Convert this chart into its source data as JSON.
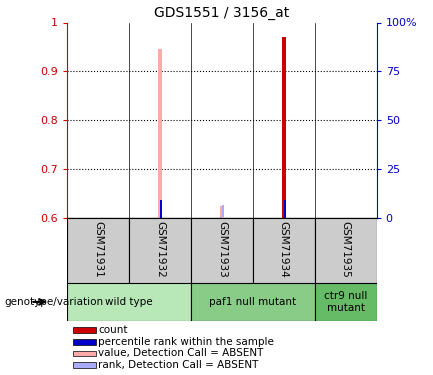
{
  "title": "GDS1551 / 3156_at",
  "samples": [
    "GSM71931",
    "GSM71932",
    "GSM71933",
    "GSM71934",
    "GSM71935"
  ],
  "ylim": [
    0.6,
    1.0
  ],
  "yticks": [
    0.6,
    0.7,
    0.8,
    0.9,
    1.0
  ],
  "ytick_labels_left": [
    "0.6",
    "0.7",
    "0.8",
    "0.9",
    "1"
  ],
  "ytick_labels_right": [
    "0",
    "25",
    "50",
    "75",
    "100%"
  ],
  "bar_values": {
    "count_red": [
      null,
      null,
      null,
      0.97,
      null
    ],
    "rank_blue": [
      null,
      0.635,
      null,
      0.635,
      null
    ],
    "value_pink": [
      null,
      0.945,
      null,
      null,
      null
    ],
    "rank_absent_lightblue": [
      null,
      null,
      0.625,
      null,
      null
    ],
    "value_absent_pink": [
      null,
      null,
      0.623,
      null,
      null
    ]
  },
  "bar_bottom": 0.6,
  "colors": {
    "count_red": "#cc0000",
    "rank_blue": "#0000cc",
    "value_pink": "#ffaaaa",
    "rank_absent_lightblue": "#aaaaff",
    "background": "#ffffff",
    "axis_left_color": "#cc0000",
    "axis_right_color": "#0000cc",
    "sample_box_color": "#cccccc",
    "genotype_wild": "#b8e8b8",
    "genotype_paf1": "#88cc88",
    "genotype_ctr9": "#66bb66"
  },
  "genotype_groups": [
    {
      "label": "wild type",
      "samples": [
        0,
        1
      ],
      "color": "#b8e8b8"
    },
    {
      "label": "paf1 null mutant",
      "samples": [
        2,
        3
      ],
      "color": "#88cc88"
    },
    {
      "label": "ctr9 null\nmutant",
      "samples": [
        4
      ],
      "color": "#66bb66"
    }
  ],
  "legend_items": [
    {
      "label": "count",
      "color": "#cc0000"
    },
    {
      "label": "percentile rank within the sample",
      "color": "#0000cc"
    },
    {
      "label": "value, Detection Call = ABSENT",
      "color": "#ffaaaa"
    },
    {
      "label": "rank, Detection Call = ABSENT",
      "color": "#aaaaff"
    }
  ],
  "genotype_label": "genotype/variation"
}
